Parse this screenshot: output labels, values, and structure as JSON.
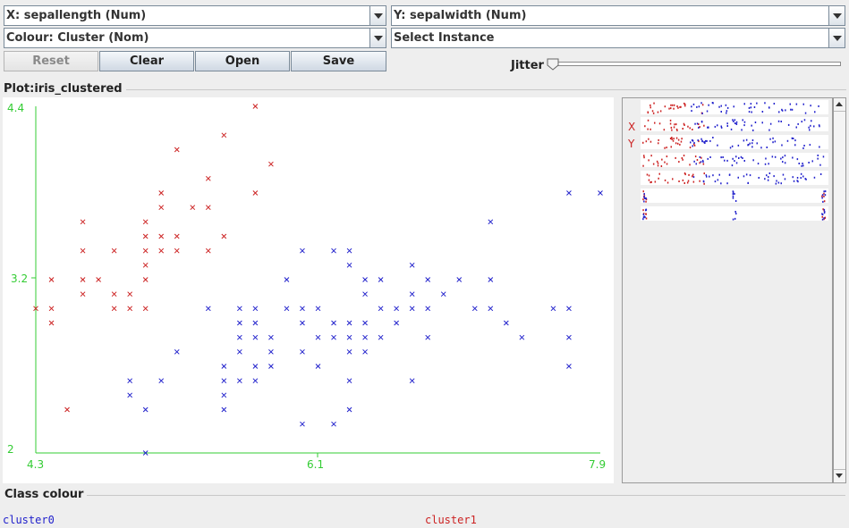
{
  "controls": {
    "x_axis": "X: sepallength (Num)",
    "y_axis": "Y: sepalwidth (Num)",
    "colour": "Colour: Cluster (Nom)",
    "instance": "Select Instance",
    "buttons": {
      "reset": "Reset",
      "clear": "Clear",
      "open": "Open",
      "save": "Save"
    },
    "jitter_label": "Jitter",
    "jitter_value": 0
  },
  "plot": {
    "title": "Plot:iris_clustered",
    "x_ticks": [
      "4.3",
      "6.1",
      "7.9"
    ],
    "y_ticks": [
      "4.4",
      "3.2",
      "2"
    ]
  },
  "matrix": {
    "x_marker": "X",
    "y_marker": "Y"
  },
  "legend": {
    "title": "Class colour",
    "items": [
      {
        "name": "cluster0",
        "color": "#2222cc"
      },
      {
        "name": "cluster1",
        "color": "#cc2222"
      }
    ]
  },
  "colors": {
    "cluster0": "#2222cc",
    "cluster1": "#cc2222",
    "axis": "#33cc33"
  },
  "chart_data": {
    "type": "scatter",
    "title": "Plot:iris_clustered",
    "xlabel": "sepallength",
    "ylabel": "sepalwidth",
    "xlim": [
      4.3,
      7.9
    ],
    "ylim": [
      2.0,
      4.4
    ],
    "marker": "x",
    "series": [
      {
        "name": "cluster1",
        "color": "#cc2222",
        "points": [
          [
            4.3,
            3.0
          ],
          [
            4.4,
            2.9
          ],
          [
            4.4,
            3.0
          ],
          [
            4.4,
            3.2
          ],
          [
            4.5,
            2.3
          ],
          [
            4.6,
            3.1
          ],
          [
            4.6,
            3.2
          ],
          [
            4.6,
            3.4
          ],
          [
            4.6,
            3.6
          ],
          [
            4.7,
            3.2
          ],
          [
            4.8,
            3.0
          ],
          [
            4.8,
            3.1
          ],
          [
            4.8,
            3.4
          ],
          [
            4.9,
            3.0
          ],
          [
            4.9,
            3.1
          ],
          [
            5.0,
            3.0
          ],
          [
            5.0,
            3.2
          ],
          [
            5.0,
            3.3
          ],
          [
            5.0,
            3.4
          ],
          [
            5.0,
            3.5
          ],
          [
            5.0,
            3.6
          ],
          [
            5.1,
            3.4
          ],
          [
            5.1,
            3.5
          ],
          [
            5.1,
            3.7
          ],
          [
            5.1,
            3.8
          ],
          [
            5.2,
            3.4
          ],
          [
            5.2,
            3.5
          ],
          [
            5.2,
            4.1
          ],
          [
            5.3,
            3.7
          ],
          [
            5.4,
            3.4
          ],
          [
            5.4,
            3.7
          ],
          [
            5.4,
            3.9
          ],
          [
            5.5,
            3.5
          ],
          [
            5.5,
            4.2
          ],
          [
            5.7,
            3.8
          ],
          [
            5.7,
            4.4
          ],
          [
            5.8,
            4.0
          ]
        ]
      },
      {
        "name": "cluster0",
        "color": "#2222cc",
        "points": [
          [
            4.9,
            2.4
          ],
          [
            4.9,
            2.5
          ],
          [
            5.0,
            2.0
          ],
          [
            5.0,
            2.3
          ],
          [
            5.1,
            2.5
          ],
          [
            5.2,
            2.7
          ],
          [
            5.4,
            3.0
          ],
          [
            5.5,
            2.3
          ],
          [
            5.5,
            2.4
          ],
          [
            5.5,
            2.5
          ],
          [
            5.5,
            2.6
          ],
          [
            5.6,
            2.5
          ],
          [
            5.6,
            2.7
          ],
          [
            5.6,
            2.8
          ],
          [
            5.6,
            2.9
          ],
          [
            5.6,
            3.0
          ],
          [
            5.7,
            2.5
          ],
          [
            5.7,
            2.6
          ],
          [
            5.7,
            2.8
          ],
          [
            5.7,
            2.9
          ],
          [
            5.7,
            3.0
          ],
          [
            5.8,
            2.6
          ],
          [
            5.8,
            2.7
          ],
          [
            5.8,
            2.8
          ],
          [
            5.9,
            3.0
          ],
          [
            5.9,
            3.2
          ],
          [
            6.0,
            2.2
          ],
          [
            6.0,
            2.7
          ],
          [
            6.0,
            2.9
          ],
          [
            6.0,
            3.0
          ],
          [
            6.0,
            3.4
          ],
          [
            6.1,
            2.6
          ],
          [
            6.1,
            2.8
          ],
          [
            6.1,
            3.0
          ],
          [
            6.2,
            2.2
          ],
          [
            6.2,
            2.8
          ],
          [
            6.2,
            2.9
          ],
          [
            6.2,
            3.4
          ],
          [
            6.3,
            2.3
          ],
          [
            6.3,
            2.5
          ],
          [
            6.3,
            2.7
          ],
          [
            6.3,
            2.8
          ],
          [
            6.3,
            2.9
          ],
          [
            6.3,
            3.3
          ],
          [
            6.3,
            3.4
          ],
          [
            6.4,
            2.7
          ],
          [
            6.4,
            2.8
          ],
          [
            6.4,
            2.9
          ],
          [
            6.4,
            3.1
          ],
          [
            6.4,
            3.2
          ],
          [
            6.5,
            2.8
          ],
          [
            6.5,
            3.0
          ],
          [
            6.5,
            3.2
          ],
          [
            6.6,
            2.9
          ],
          [
            6.6,
            3.0
          ],
          [
            6.7,
            2.5
          ],
          [
            6.7,
            3.0
          ],
          [
            6.7,
            3.1
          ],
          [
            6.7,
            3.3
          ],
          [
            6.8,
            2.8
          ],
          [
            6.8,
            3.0
          ],
          [
            6.8,
            3.2
          ],
          [
            6.9,
            3.1
          ],
          [
            7.0,
            3.2
          ],
          [
            7.1,
            3.0
          ],
          [
            7.2,
            3.0
          ],
          [
            7.2,
            3.2
          ],
          [
            7.2,
            3.6
          ],
          [
            7.3,
            2.9
          ],
          [
            7.4,
            2.8
          ],
          [
            7.6,
            3.0
          ],
          [
            7.7,
            2.6
          ],
          [
            7.7,
            2.8
          ],
          [
            7.7,
            3.0
          ],
          [
            7.7,
            3.8
          ],
          [
            7.9,
            3.8
          ]
        ]
      }
    ]
  }
}
